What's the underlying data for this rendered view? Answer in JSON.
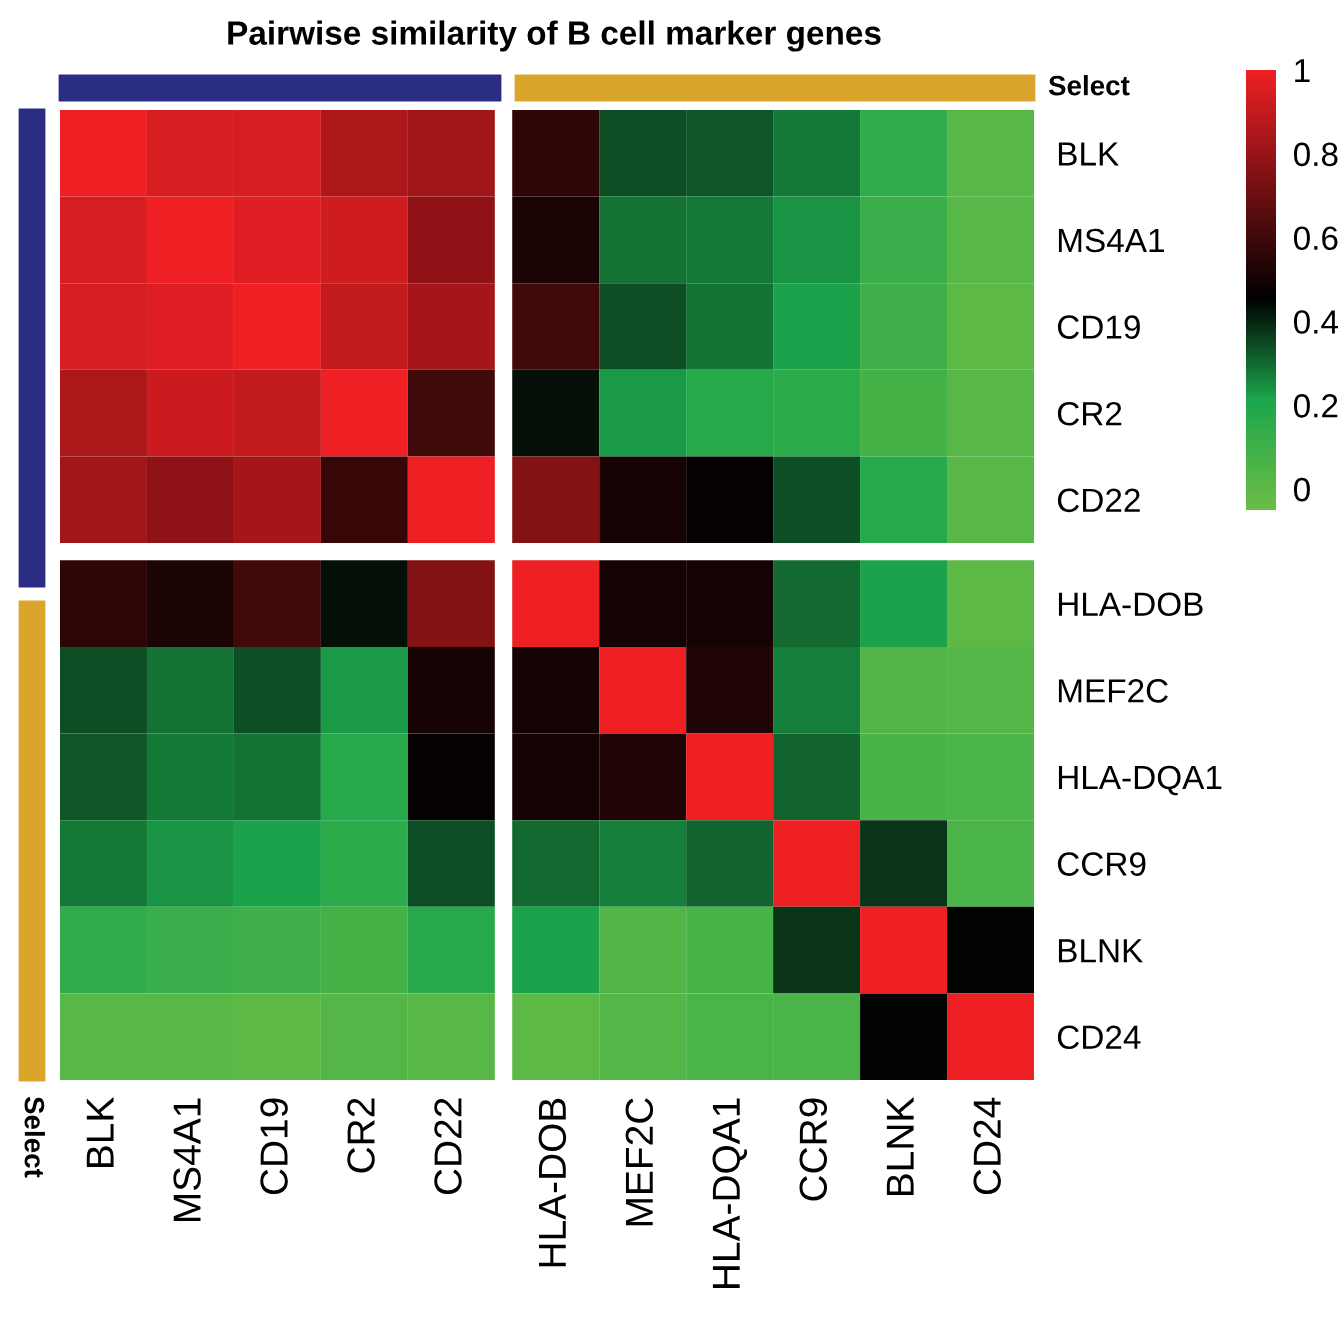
{
  "chart_data": {
    "type": "heatmap",
    "title": "Pairwise similarity of B cell marker genes",
    "annotations": [
      "Select",
      "Select"
    ],
    "categories": [
      "BLK",
      "MS4A1",
      "CD19",
      "CR2",
      "CD22",
      "HLA-DOB",
      "MEF2C",
      "HLA-DQA1",
      "CCR9",
      "BLNK",
      "CD24"
    ],
    "y_categories": [
      "BLK",
      "MS4A1",
      "CD19",
      "CR2",
      "CD22",
      "HLA-DOB",
      "MEF2C",
      "HLA-DQA1",
      "CCR9",
      "BLNK",
      "CD24"
    ],
    "cells": [
      [
        1,
        0.95,
        0.95,
        0.85,
        0.82,
        0.56,
        0.34,
        0.33,
        0.28,
        0.15,
        0.02
      ],
      [
        0.95,
        1,
        0.96,
        0.93,
        0.78,
        0.52,
        0.29,
        0.28,
        0.24,
        0.12,
        0.02
      ],
      [
        0.95,
        0.96,
        1,
        0.9,
        0.83,
        0.6,
        0.34,
        0.29,
        0.22,
        0.1,
        0.0
      ],
      [
        0.85,
        0.92,
        0.9,
        1,
        0.6,
        0.43,
        0.23,
        0.18,
        0.16,
        0.08,
        0.02
      ],
      [
        0.82,
        0.78,
        0.83,
        0.58,
        1,
        0.75,
        0.51,
        0.47,
        0.34,
        0.18,
        0.02
      ],
      [
        0.56,
        0.52,
        0.6,
        0.43,
        0.75,
        1,
        0.5,
        0.5,
        0.3,
        0.22,
        0.0
      ],
      [
        0.34,
        0.29,
        0.34,
        0.23,
        0.51,
        0.5,
        1,
        0.53,
        0.27,
        0.04,
        0.03
      ],
      [
        0.33,
        0.28,
        0.29,
        0.18,
        0.47,
        0.5,
        0.53,
        1,
        0.31,
        0.07,
        0.06
      ],
      [
        0.28,
        0.24,
        0.22,
        0.16,
        0.34,
        0.3,
        0.27,
        0.31,
        1,
        0.38,
        0.06
      ],
      [
        0.15,
        0.12,
        0.1,
        0.08,
        0.18,
        0.22,
        0.04,
        0.07,
        0.38,
        1,
        0.45
      ],
      [
        0.02,
        0.02,
        0.0,
        0.03,
        0.02,
        0.0,
        0.03,
        0.06,
        0.06,
        0.45,
        1
      ]
    ],
    "clim": [
      -0.05,
      1
    ],
    "cticks": [
      0,
      0.2,
      0.4,
      0.6,
      0.8,
      1
    ]
  }
}
